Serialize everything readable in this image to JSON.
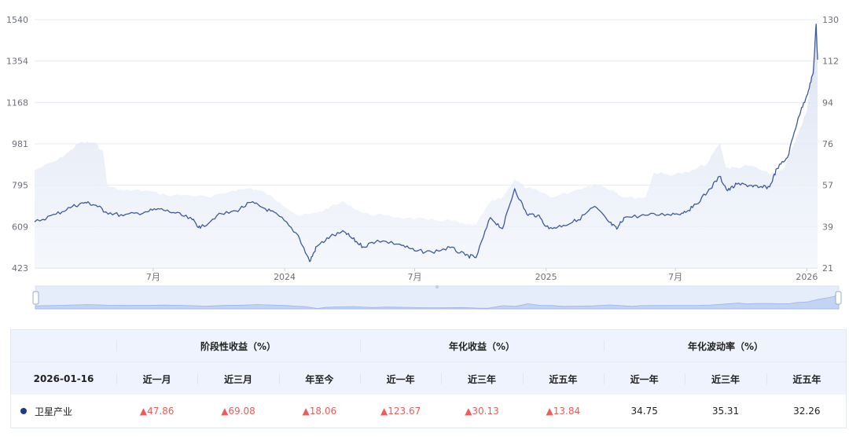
{
  "chart_data": {
    "type": "line",
    "left_axis": {
      "ticks": [
        "1540",
        "1354",
        "1168",
        "981",
        "795",
        "609",
        "423"
      ],
      "range": [
        423,
        1540
      ]
    },
    "right_axis": {
      "ticks": [
        "130",
        "112",
        "94",
        "76",
        "57",
        "39",
        "21"
      ],
      "range": [
        21,
        130
      ]
    },
    "x_ticks": [
      {
        "label": "7月",
        "date": "2023-07-01"
      },
      {
        "label": "2024",
        "date": "2024-01-01"
      },
      {
        "label": "7月",
        "date": "2024-07-01"
      },
      {
        "label": "2025",
        "date": "2025-01-01"
      },
      {
        "label": "7月",
        "date": "2025-07-01"
      },
      {
        "label": "2026",
        "date": "2026-01-01"
      }
    ],
    "x_range": [
      "2023-01-16",
      "2026-01-16"
    ],
    "series": [
      {
        "type": "line",
        "axis": "left",
        "color": "#3c5a9a",
        "points": [
          [
            "2023-01-16",
            630
          ],
          [
            "2023-02-15",
            665
          ],
          [
            "2023-03-10",
            700
          ],
          [
            "2023-03-28",
            718
          ],
          [
            "2023-04-12",
            705
          ],
          [
            "2023-04-26",
            675
          ],
          [
            "2023-05-20",
            658
          ],
          [
            "2023-06-20",
            676
          ],
          [
            "2023-07-10",
            688
          ],
          [
            "2023-08-01",
            670
          ],
          [
            "2023-08-25",
            640
          ],
          [
            "2023-09-05",
            602
          ],
          [
            "2023-09-28",
            658
          ],
          [
            "2023-10-25",
            680
          ],
          [
            "2023-11-15",
            718
          ],
          [
            "2023-12-05",
            690
          ],
          [
            "2023-12-25",
            655
          ],
          [
            "2024-01-20",
            570
          ],
          [
            "2024-02-05",
            452
          ],
          [
            "2024-02-15",
            520
          ],
          [
            "2024-03-05",
            565
          ],
          [
            "2024-03-25",
            585
          ],
          [
            "2024-04-05",
            555
          ],
          [
            "2024-04-20",
            518
          ],
          [
            "2024-05-10",
            548
          ],
          [
            "2024-06-10",
            530
          ],
          [
            "2024-07-01",
            500
          ],
          [
            "2024-07-25",
            495
          ],
          [
            "2024-08-20",
            515
          ],
          [
            "2024-09-10",
            480
          ],
          [
            "2024-09-25",
            470
          ],
          [
            "2024-10-15",
            650
          ],
          [
            "2024-11-01",
            600
          ],
          [
            "2024-11-18",
            780
          ],
          [
            "2024-12-05",
            665
          ],
          [
            "2024-12-20",
            660
          ],
          [
            "2025-01-05",
            600
          ],
          [
            "2025-01-25",
            615
          ],
          [
            "2025-02-15",
            640
          ],
          [
            "2025-03-10",
            700
          ],
          [
            "2025-03-30",
            630
          ],
          [
            "2025-04-10",
            598
          ],
          [
            "2025-04-20",
            650
          ],
          [
            "2025-05-20",
            660
          ],
          [
            "2025-06-20",
            665
          ],
          [
            "2025-07-10",
            670
          ],
          [
            "2025-07-25",
            695
          ],
          [
            "2025-08-15",
            765
          ],
          [
            "2025-09-01",
            835
          ],
          [
            "2025-09-12",
            770
          ],
          [
            "2025-09-25",
            800
          ],
          [
            "2025-10-15",
            795
          ],
          [
            "2025-10-25",
            785
          ],
          [
            "2025-11-10",
            788
          ],
          [
            "2025-11-20",
            870
          ],
          [
            "2025-12-05",
            920
          ],
          [
            "2025-12-20",
            1100
          ],
          [
            "2026-01-01",
            1200
          ],
          [
            "2026-01-10",
            1300
          ],
          [
            "2026-01-14",
            1520
          ],
          [
            "2026-01-16",
            1360
          ]
        ]
      },
      {
        "type": "area",
        "axis": "right",
        "color": "#dfe6f3",
        "points": [
          [
            "2023-01-16",
            64
          ],
          [
            "2023-02-15",
            68
          ],
          [
            "2023-03-05",
            72
          ],
          [
            "2023-03-20",
            76
          ],
          [
            "2023-04-10",
            76
          ],
          [
            "2023-04-22",
            72
          ],
          [
            "2023-04-28",
            57
          ],
          [
            "2023-05-20",
            55
          ],
          [
            "2023-06-20",
            55
          ],
          [
            "2023-07-20",
            53
          ],
          [
            "2023-08-20",
            53
          ],
          [
            "2023-09-20",
            52
          ],
          [
            "2023-10-20",
            55
          ],
          [
            "2023-11-15",
            56
          ],
          [
            "2023-12-05",
            54
          ],
          [
            "2023-12-25",
            50
          ],
          [
            "2024-01-20",
            44
          ],
          [
            "2024-02-15",
            45
          ],
          [
            "2024-03-05",
            48
          ],
          [
            "2024-03-25",
            50
          ],
          [
            "2024-04-20",
            45
          ],
          [
            "2024-05-20",
            44
          ],
          [
            "2024-06-20",
            43
          ],
          [
            "2024-07-20",
            42
          ],
          [
            "2024-08-20",
            42
          ],
          [
            "2024-09-10",
            40
          ],
          [
            "2024-09-25",
            40
          ],
          [
            "2024-10-15",
            50
          ],
          [
            "2024-11-01",
            52
          ],
          [
            "2024-11-18",
            60
          ],
          [
            "2024-12-05",
            56
          ],
          [
            "2024-12-20",
            55
          ],
          [
            "2025-01-10",
            52
          ],
          [
            "2025-02-10",
            55
          ],
          [
            "2025-03-10",
            58
          ],
          [
            "2025-04-05",
            55
          ],
          [
            "2025-04-20",
            52
          ],
          [
            "2025-05-20",
            52
          ],
          [
            "2025-06-01",
            63
          ],
          [
            "2025-06-20",
            62
          ],
          [
            "2025-07-20",
            63
          ],
          [
            "2025-08-15",
            67
          ],
          [
            "2025-09-01",
            76
          ],
          [
            "2025-09-10",
            65
          ],
          [
            "2025-09-25",
            65
          ],
          [
            "2025-10-15",
            66
          ],
          [
            "2025-11-10",
            62
          ],
          [
            "2025-12-01",
            65
          ],
          [
            "2025-12-20",
            80
          ],
          [
            "2026-01-01",
            90
          ],
          [
            "2026-01-10",
            110
          ],
          [
            "2026-01-14",
            125
          ],
          [
            "2026-01-16",
            115
          ]
        ]
      }
    ],
    "zoom": {
      "start": 0,
      "end": 100
    }
  },
  "table": {
    "groups": [
      "阶段性收益（%）",
      "年化收益（%）",
      "年化波动率（%）"
    ],
    "date": "2026-01-16",
    "columns": [
      "近一月",
      "近三月",
      "年至今",
      "近一年",
      "近三年",
      "近五年",
      "近一年",
      "近三年",
      "近五年"
    ],
    "row": {
      "name": "卫星产业",
      "values": [
        "▲47.86",
        "▲69.08",
        "▲18.06",
        "▲123.67",
        "▲30.13",
        "▲13.84",
        "34.75",
        "35.31",
        "32.26"
      ]
    },
    "colors": {
      "up": "#ef5b5b",
      "dot": "#1b3a8c"
    }
  }
}
